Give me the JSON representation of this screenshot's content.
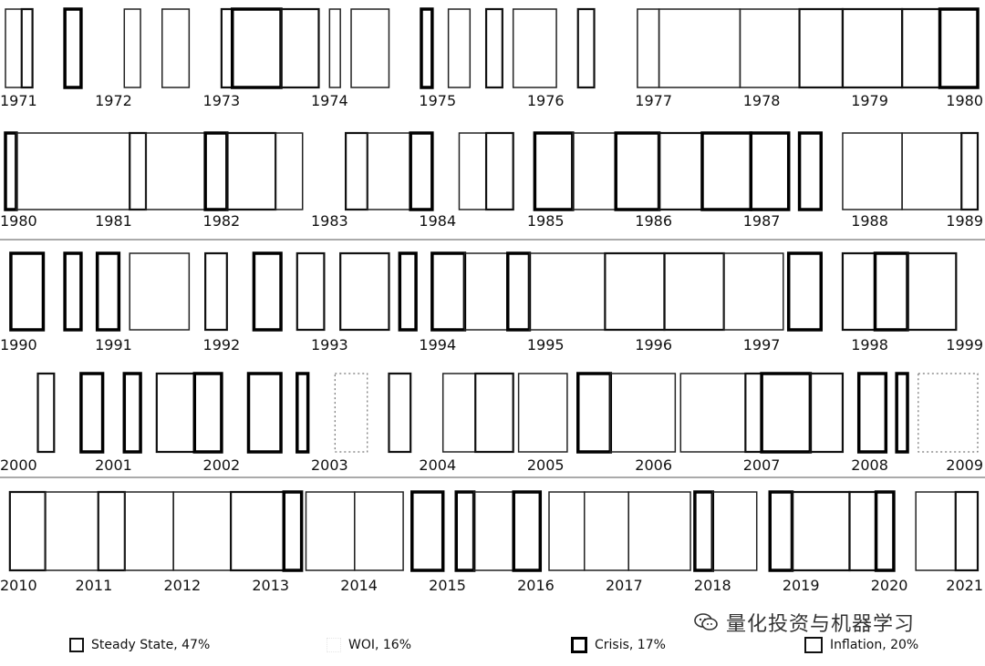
{
  "chart_data": {
    "type": "regime-timeline",
    "title": "",
    "rows": [
      {
        "ticks": [
          "1971",
          "1972",
          "1973",
          "1974",
          "1975",
          "1976",
          "1977",
          "1978",
          "1979",
          "1980"
        ],
        "start": 1971,
        "end": 1980
      },
      {
        "ticks": [
          "1980",
          "1981",
          "1982",
          "1983",
          "1984",
          "1985",
          "1986",
          "1987",
          "1988",
          "1989"
        ],
        "start": 1980,
        "end": 1989
      },
      {
        "ticks": [
          "1990",
          "1991",
          "1992",
          "1993",
          "1994",
          "1995",
          "1996",
          "1997",
          "1998",
          "1999"
        ],
        "start": 1990,
        "end": 1999
      },
      {
        "ticks": [
          "2000",
          "2001",
          "2002",
          "2003",
          "2004",
          "2005",
          "2006",
          "2007",
          "2008",
          "2009"
        ],
        "start": 2000,
        "end": 2009
      },
      {
        "ticks": [
          "2010",
          "2011",
          "2012",
          "2013",
          "2014",
          "2015",
          "2016",
          "2017",
          "2018",
          "2019",
          "2020",
          "2021"
        ],
        "start": 2010,
        "end": 2021
      }
    ],
    "regimes": [
      {
        "name": "Steady State",
        "share": "47%",
        "legend_label": "Steady State, 47%"
      },
      {
        "name": "WOI",
        "share": "16%",
        "legend_label": "WOI, 16%"
      },
      {
        "name": "Crisis",
        "share": "17%",
        "legend_label": "Crisis, 17%"
      },
      {
        "name": "Inflation",
        "share": "20%",
        "legend_label": "Inflation, 20%"
      }
    ],
    "segments": [
      {
        "row": 0,
        "start": 1971.0,
        "end": 1971.15,
        "regime": "Steady State"
      },
      {
        "row": 0,
        "start": 1971.15,
        "end": 1971.25,
        "regime": "Inflation"
      },
      {
        "row": 0,
        "start": 1971.55,
        "end": 1971.7,
        "regime": "Crisis"
      },
      {
        "row": 0,
        "start": 1972.1,
        "end": 1972.25,
        "regime": "Steady State"
      },
      {
        "row": 0,
        "start": 1972.45,
        "end": 1972.7,
        "regime": "Steady State"
      },
      {
        "row": 0,
        "start": 1973.0,
        "end": 1973.1,
        "regime": "Inflation"
      },
      {
        "row": 0,
        "start": 1973.1,
        "end": 1973.55,
        "regime": "Crisis"
      },
      {
        "row": 0,
        "start": 1973.55,
        "end": 1973.9,
        "regime": "Inflation"
      },
      {
        "row": 0,
        "start": 1974.0,
        "end": 1974.1,
        "regime": "Steady State"
      },
      {
        "row": 0,
        "start": 1974.2,
        "end": 1974.55,
        "regime": "Steady State"
      },
      {
        "row": 0,
        "start": 1974.85,
        "end": 1974.95,
        "regime": "Crisis"
      },
      {
        "row": 0,
        "start": 1975.1,
        "end": 1975.3,
        "regime": "Steady State"
      },
      {
        "row": 0,
        "start": 1975.45,
        "end": 1975.6,
        "regime": "Inflation"
      },
      {
        "row": 0,
        "start": 1975.7,
        "end": 1976.1,
        "regime": "Steady State"
      },
      {
        "row": 0,
        "start": 1976.3,
        "end": 1976.45,
        "regime": "Inflation"
      },
      {
        "row": 0,
        "start": 1976.85,
        "end": 1977.05,
        "regime": "Steady State"
      },
      {
        "row": 0,
        "start": 1977.05,
        "end": 1977.8,
        "regime": "Steady State"
      },
      {
        "row": 0,
        "start": 1977.8,
        "end": 1978.35,
        "regime": "Steady State"
      },
      {
        "row": 0,
        "start": 1978.35,
        "end": 1978.75,
        "regime": "Inflation"
      },
      {
        "row": 0,
        "start": 1978.75,
        "end": 1979.3,
        "regime": "Inflation"
      },
      {
        "row": 0,
        "start": 1979.3,
        "end": 1979.65,
        "regime": "Inflation"
      },
      {
        "row": 0,
        "start": 1979.65,
        "end": 1980.0,
        "regime": "Crisis"
      },
      {
        "row": 1,
        "start": 1980.0,
        "end": 1980.1,
        "regime": "Crisis"
      },
      {
        "row": 1,
        "start": 1980.1,
        "end": 1981.15,
        "regime": "Steady State"
      },
      {
        "row": 1,
        "start": 1981.15,
        "end": 1981.3,
        "regime": "Inflation"
      },
      {
        "row": 1,
        "start": 1981.3,
        "end": 1981.85,
        "regime": "Steady State"
      },
      {
        "row": 1,
        "start": 1981.85,
        "end": 1982.05,
        "regime": "Crisis"
      },
      {
        "row": 1,
        "start": 1982.05,
        "end": 1982.5,
        "regime": "Inflation"
      },
      {
        "row": 1,
        "start": 1982.5,
        "end": 1982.75,
        "regime": "Steady State"
      },
      {
        "row": 1,
        "start": 1983.15,
        "end": 1983.35,
        "regime": "Inflation"
      },
      {
        "row": 1,
        "start": 1983.35,
        "end": 1983.75,
        "regime": "Steady State"
      },
      {
        "row": 1,
        "start": 1983.75,
        "end": 1983.95,
        "regime": "Crisis"
      },
      {
        "row": 1,
        "start": 1984.2,
        "end": 1984.45,
        "regime": "Steady State"
      },
      {
        "row": 1,
        "start": 1984.45,
        "end": 1984.7,
        "regime": "Inflation"
      },
      {
        "row": 1,
        "start": 1984.9,
        "end": 1985.25,
        "regime": "Crisis"
      },
      {
        "row": 1,
        "start": 1985.25,
        "end": 1985.65,
        "regime": "Steady State"
      },
      {
        "row": 1,
        "start": 1985.65,
        "end": 1986.05,
        "regime": "Crisis"
      },
      {
        "row": 1,
        "start": 1986.05,
        "end": 1986.45,
        "regime": "Inflation"
      },
      {
        "row": 1,
        "start": 1986.45,
        "end": 1986.9,
        "regime": "Crisis"
      },
      {
        "row": 1,
        "start": 1986.9,
        "end": 1987.25,
        "regime": "Crisis"
      },
      {
        "row": 1,
        "start": 1987.35,
        "end": 1987.55,
        "regime": "Crisis"
      },
      {
        "row": 1,
        "start": 1987.75,
        "end": 1988.3,
        "regime": "Steady State"
      },
      {
        "row": 1,
        "start": 1988.3,
        "end": 1988.85,
        "regime": "Steady State"
      },
      {
        "row": 1,
        "start": 1988.85,
        "end": 1989.0,
        "regime": "Inflation"
      },
      {
        "row": 2,
        "start": 1990.05,
        "end": 1990.35,
        "regime": "Crisis"
      },
      {
        "row": 2,
        "start": 1990.55,
        "end": 1990.7,
        "regime": "Crisis"
      },
      {
        "row": 2,
        "start": 1990.85,
        "end": 1991.05,
        "regime": "Crisis"
      },
      {
        "row": 2,
        "start": 1991.15,
        "end": 1991.7,
        "regime": "Steady State"
      },
      {
        "row": 2,
        "start": 1991.85,
        "end": 1992.05,
        "regime": "Inflation"
      },
      {
        "row": 2,
        "start": 1992.3,
        "end": 1992.55,
        "regime": "Crisis"
      },
      {
        "row": 2,
        "start": 1992.7,
        "end": 1992.95,
        "regime": "Inflation"
      },
      {
        "row": 2,
        "start": 1993.1,
        "end": 1993.55,
        "regime": "Inflation"
      },
      {
        "row": 2,
        "start": 1993.65,
        "end": 1993.8,
        "regime": "Crisis"
      },
      {
        "row": 2,
        "start": 1993.95,
        "end": 1994.25,
        "regime": "Crisis"
      },
      {
        "row": 2,
        "start": 1994.25,
        "end": 1994.65,
        "regime": "Steady State"
      },
      {
        "row": 2,
        "start": 1994.65,
        "end": 1994.85,
        "regime": "Crisis"
      },
      {
        "row": 2,
        "start": 1994.85,
        "end": 1995.55,
        "regime": "Steady State"
      },
      {
        "row": 2,
        "start": 1995.55,
        "end": 1996.1,
        "regime": "Inflation"
      },
      {
        "row": 2,
        "start": 1996.1,
        "end": 1996.65,
        "regime": "Inflation"
      },
      {
        "row": 2,
        "start": 1996.65,
        "end": 1997.2,
        "regime": "Steady State"
      },
      {
        "row": 2,
        "start": 1997.25,
        "end": 1997.55,
        "regime": "Crisis"
      },
      {
        "row": 2,
        "start": 1997.75,
        "end": 1998.05,
        "regime": "Inflation"
      },
      {
        "row": 2,
        "start": 1998.05,
        "end": 1998.35,
        "regime": "Crisis"
      },
      {
        "row": 2,
        "start": 1998.35,
        "end": 1998.8,
        "regime": "Inflation"
      },
      {
        "row": 3,
        "start": 2000.3,
        "end": 2000.45,
        "regime": "Inflation"
      },
      {
        "row": 3,
        "start": 2000.7,
        "end": 2000.9,
        "regime": "Crisis"
      },
      {
        "row": 3,
        "start": 2001.1,
        "end": 2001.25,
        "regime": "Crisis"
      },
      {
        "row": 3,
        "start": 2001.4,
        "end": 2001.75,
        "regime": "Inflation"
      },
      {
        "row": 3,
        "start": 2001.75,
        "end": 2002.0,
        "regime": "Crisis"
      },
      {
        "row": 3,
        "start": 2002.25,
        "end": 2002.55,
        "regime": "Crisis"
      },
      {
        "row": 3,
        "start": 2002.7,
        "end": 2002.8,
        "regime": "Crisis"
      },
      {
        "row": 3,
        "start": 2003.05,
        "end": 2003.35,
        "regime": "WOI"
      },
      {
        "row": 3,
        "start": 2003.55,
        "end": 2003.75,
        "regime": "Inflation"
      },
      {
        "row": 3,
        "start": 2004.05,
        "end": 2004.35,
        "regime": "Steady State"
      },
      {
        "row": 3,
        "start": 2004.35,
        "end": 2004.7,
        "regime": "Inflation"
      },
      {
        "row": 3,
        "start": 2004.75,
        "end": 2005.2,
        "regime": "Steady State"
      },
      {
        "row": 3,
        "start": 2005.3,
        "end": 2005.6,
        "regime": "Crisis"
      },
      {
        "row": 3,
        "start": 2005.6,
        "end": 2006.2,
        "regime": "Steady State"
      },
      {
        "row": 3,
        "start": 2006.25,
        "end": 2006.85,
        "regime": "Steady State"
      },
      {
        "row": 3,
        "start": 2006.85,
        "end": 2007.0,
        "regime": "Inflation"
      },
      {
        "row": 3,
        "start": 2007.0,
        "end": 2007.45,
        "regime": "Crisis"
      },
      {
        "row": 3,
        "start": 2007.45,
        "end": 2007.75,
        "regime": "Inflation"
      },
      {
        "row": 3,
        "start": 2007.9,
        "end": 2008.15,
        "regime": "Crisis"
      },
      {
        "row": 3,
        "start": 2008.25,
        "end": 2008.35,
        "regime": "Crisis"
      },
      {
        "row": 3,
        "start": 2008.45,
        "end": 2009.0,
        "regime": "WOI"
      },
      {
        "row": 4,
        "start": 2010.05,
        "end": 2010.45,
        "regime": "Inflation"
      },
      {
        "row": 4,
        "start": 2010.45,
        "end": 2011.05,
        "regime": "Steady State"
      },
      {
        "row": 4,
        "start": 2011.05,
        "end": 2011.35,
        "regime": "Inflation"
      },
      {
        "row": 4,
        "start": 2011.35,
        "end": 2011.9,
        "regime": "Steady State"
      },
      {
        "row": 4,
        "start": 2011.9,
        "end": 2012.55,
        "regime": "Steady State"
      },
      {
        "row": 4,
        "start": 2012.55,
        "end": 2013.15,
        "regime": "Inflation"
      },
      {
        "row": 4,
        "start": 2013.15,
        "end": 2013.35,
        "regime": "Crisis"
      },
      {
        "row": 4,
        "start": 2013.4,
        "end": 2013.95,
        "regime": "Steady State"
      },
      {
        "row": 4,
        "start": 2013.95,
        "end": 2014.5,
        "regime": "Steady State"
      },
      {
        "row": 4,
        "start": 2014.6,
        "end": 2014.95,
        "regime": "Crisis"
      },
      {
        "row": 4,
        "start": 2015.1,
        "end": 2015.3,
        "regime": "Crisis"
      },
      {
        "row": 4,
        "start": 2015.3,
        "end": 2015.75,
        "regime": "Steady State"
      },
      {
        "row": 4,
        "start": 2015.75,
        "end": 2016.05,
        "regime": "Crisis"
      },
      {
        "row": 4,
        "start": 2016.15,
        "end": 2016.55,
        "regime": "Steady State"
      },
      {
        "row": 4,
        "start": 2016.55,
        "end": 2017.05,
        "regime": "Steady State"
      },
      {
        "row": 4,
        "start": 2017.05,
        "end": 2017.75,
        "regime": "Steady State"
      },
      {
        "row": 4,
        "start": 2017.8,
        "end": 2018.0,
        "regime": "Crisis"
      },
      {
        "row": 4,
        "start": 2018.0,
        "end": 2018.5,
        "regime": "Steady State"
      },
      {
        "row": 4,
        "start": 2018.65,
        "end": 2018.9,
        "regime": "Crisis"
      },
      {
        "row": 4,
        "start": 2018.9,
        "end": 2019.55,
        "regime": "Inflation"
      },
      {
        "row": 4,
        "start": 2019.55,
        "end": 2019.85,
        "regime": "Inflation"
      },
      {
        "row": 4,
        "start": 2019.85,
        "end": 2020.05,
        "regime": "Crisis"
      },
      {
        "row": 4,
        "start": 2020.3,
        "end": 2020.75,
        "regime": "Steady State"
      },
      {
        "row": 4,
        "start": 2020.75,
        "end": 2021.0,
        "regime": "Inflation"
      }
    ]
  },
  "legend": {
    "steady_label": "Steady State, 47%",
    "woi_label": "WOI, 16%",
    "crisis_label": "Crisis, 17%",
    "inflation_label": "Inflation, 20%"
  },
  "watermark": {
    "text": "量化投资与机器学习",
    "icon": "wechat-icon"
  }
}
